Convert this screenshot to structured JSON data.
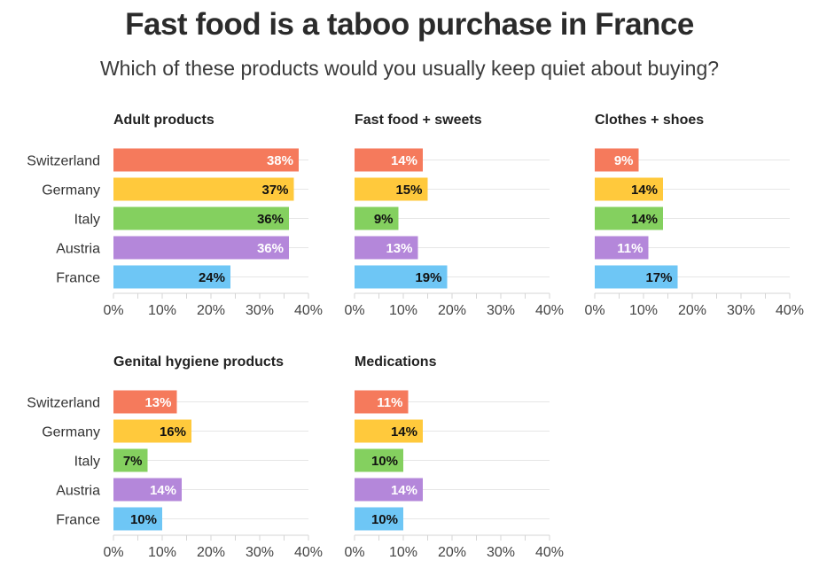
{
  "title": "Fast food is a taboo purchase in France",
  "subtitle": "Which of these products would you usually keep quiet about buying?",
  "chart_data": {
    "type": "bar",
    "orientation": "horizontal",
    "categories": [
      "Switzerland",
      "Germany",
      "Italy",
      "Austria",
      "France"
    ],
    "colors": [
      "#F57A5C",
      "#FFC93C",
      "#84D05F",
      "#B487DA",
      "#6EC6F5"
    ],
    "label_colors": [
      "#ffffff",
      "#111111",
      "#111111",
      "#ffffff",
      "#111111"
    ],
    "xlim": [
      0,
      40
    ],
    "xticks": [
      "0%",
      "10%",
      "20%",
      "30%",
      "40%"
    ],
    "grid": true,
    "panels": [
      {
        "title": "Adult products",
        "values": [
          38,
          37,
          36,
          36,
          24
        ],
        "labels": [
          "38%",
          "37%",
          "36%",
          "36%",
          "24%"
        ]
      },
      {
        "title": "Fast food + sweets",
        "values": [
          14,
          15,
          9,
          13,
          19
        ],
        "labels": [
          "14%",
          "15%",
          "9%",
          "13%",
          "19%"
        ]
      },
      {
        "title": "Clothes + shoes",
        "values": [
          9,
          14,
          14,
          11,
          17
        ],
        "labels": [
          "9%",
          "14%",
          "14%",
          "11%",
          "17%"
        ]
      },
      {
        "title": "Genital hygiene products",
        "values": [
          13,
          16,
          7,
          14,
          10
        ],
        "labels": [
          "13%",
          "16%",
          "7%",
          "14%",
          "10%"
        ]
      },
      {
        "title": "Medications",
        "values": [
          11,
          14,
          10,
          14,
          10
        ],
        "labels": [
          "11%",
          "14%",
          "10%",
          "14%",
          "10%"
        ]
      }
    ]
  }
}
